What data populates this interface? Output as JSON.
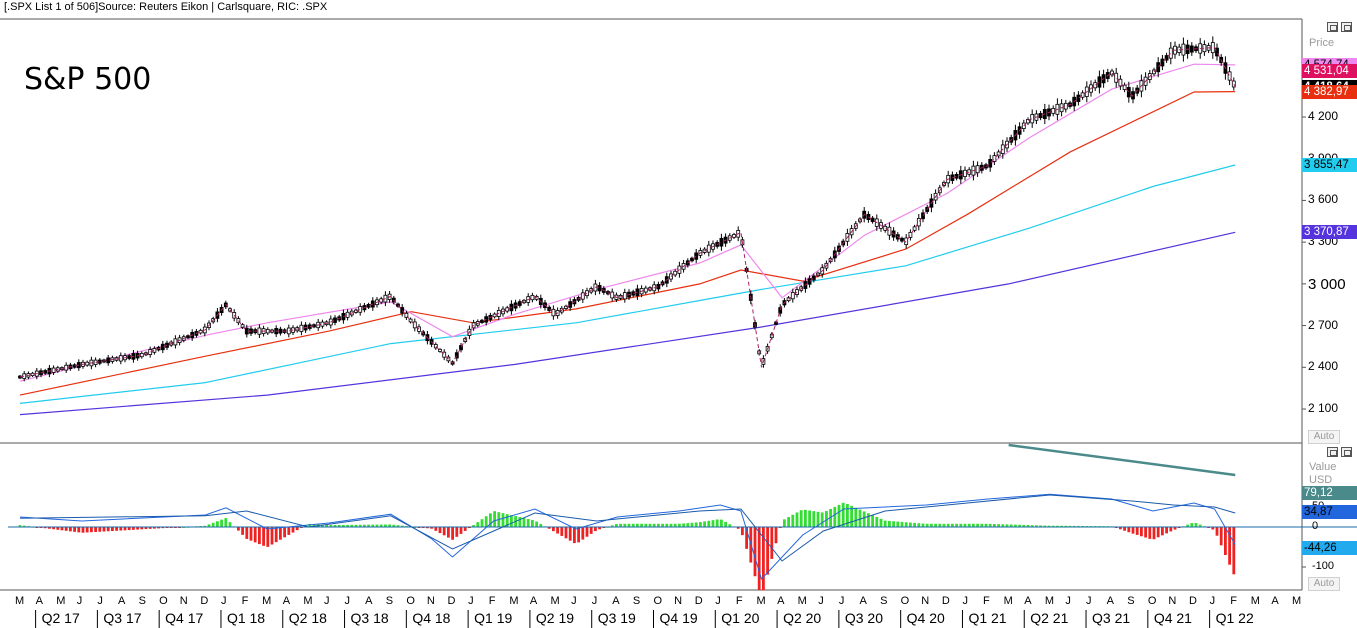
{
  "header": {
    "text": "[.SPX List 1 of 506]Source: Reuters Eikon | Carlsquare, RIC: .SPX"
  },
  "title": "S&P 500",
  "price_panel": {
    "label": "Price",
    "auto_label": "Auto",
    "ticks": [
      "4 200",
      "3 900",
      "3 600",
      "3 300",
      "3 000",
      "2 700",
      "2 400",
      "2 100"
    ],
    "tags": [
      {
        "value": "4 574,74",
        "color": "#ee88ee",
        "text_color": "#000000"
      },
      {
        "value": "4 531,04",
        "color": "#e01060",
        "text_color": "#ffffff"
      },
      {
        "value": "4 418,64",
        "color": "#000000",
        "text_color": "#ffffff"
      },
      {
        "value": "4 382,97",
        "color": "#e83010",
        "text_color": "#ffffff"
      },
      {
        "value": "3 855,47",
        "color": "#22ccee",
        "text_color": "#000000"
      },
      {
        "value": "3 370,87",
        "color": "#5533dd",
        "text_color": "#ffffff"
      }
    ]
  },
  "macd_panel": {
    "label": "Value",
    "unit": "USD",
    "auto_label": "Auto",
    "ticks": [
      "50",
      "0",
      "-50",
      "-100"
    ],
    "tags": [
      {
        "value": "79,12",
        "color": "#4a8a8a",
        "text_color": "#ffffff"
      },
      {
        "value": "34,87",
        "color": "#2266dd",
        "text_color": "#000000"
      },
      {
        "value": "-44,26",
        "color": "#22aaee",
        "text_color": "#000000"
      }
    ]
  },
  "x_axis": {
    "months": [
      "M",
      "A",
      "M",
      "J",
      "J",
      "A",
      "S",
      "O",
      "N",
      "D",
      "J",
      "F",
      "M",
      "A",
      "M",
      "J",
      "J",
      "A",
      "S",
      "O",
      "N",
      "D",
      "J",
      "F",
      "M",
      "A",
      "M",
      "J",
      "J",
      "A",
      "S",
      "O",
      "N",
      "D",
      "J",
      "F",
      "M",
      "A",
      "M",
      "J",
      "J",
      "A",
      "S",
      "O",
      "N",
      "D",
      "J",
      "F",
      "M",
      "A",
      "M",
      "J",
      "J",
      "A",
      "S",
      "O",
      "N",
      "D",
      "J",
      "F",
      "M",
      "A",
      "M"
    ],
    "quarters": [
      "Q2 17",
      "Q3 17",
      "Q4 17",
      "Q1 18",
      "Q2 18",
      "Q3 18",
      "Q4 18",
      "Q1 19",
      "Q2 19",
      "Q3 19",
      "Q4 19",
      "Q1 20",
      "Q2 20",
      "Q3 20",
      "Q4 20",
      "Q1 21",
      "Q2 21",
      "Q3 21",
      "Q4 21",
      "Q1 22"
    ]
  },
  "chart_data": {
    "type": "line",
    "title": "S&P 500",
    "x_range": [
      "2017-03",
      "2022-05"
    ],
    "ylim": [
      2000,
      4700
    ],
    "series": [
      {
        "name": "",
        "color": "#000000",
        "points": [
          [
            "2017-03",
            2330
          ],
          [
            "2017-06",
            2420
          ],
          [
            "2017-09",
            2490
          ],
          [
            "2017-12",
            2670
          ],
          [
            "2018-01",
            2850
          ],
          [
            "2018-02",
            2660
          ],
          [
            "2018-04",
            2660
          ],
          [
            "2018-06",
            2720
          ],
          [
            "2018-09",
            2910
          ],
          [
            "2018-10",
            2730
          ],
          [
            "2018-12",
            2430
          ],
          [
            "2019-01",
            2700
          ],
          [
            "2019-04",
            2910
          ],
          [
            "2019-05",
            2780
          ],
          [
            "2019-07",
            2980
          ],
          [
            "2019-08",
            2900
          ],
          [
            "2019-10",
            2980
          ],
          [
            "2019-12",
            3220
          ],
          [
            "2020-02",
            3370
          ],
          [
            "2020-03",
            2400
          ],
          [
            "2020-04",
            2850
          ],
          [
            "2020-06",
            3100
          ],
          [
            "2020-08",
            3500
          ],
          [
            "2020-10",
            3300
          ],
          [
            "2020-12",
            3750
          ],
          [
            "2021-02",
            3850
          ],
          [
            "2021-04",
            4180
          ],
          [
            "2021-06",
            4290
          ],
          [
            "2021-08",
            4520
          ],
          [
            "2021-09",
            4350
          ],
          [
            "2021-11",
            4680
          ],
          [
            "2022-01",
            4700
          ],
          [
            "2022-02",
            4418
          ]
        ]
      },
      {
        "name": "",
        "color": "#ee88ee",
        "points": [
          [
            "2017-03",
            2300
          ],
          [
            "2017-12",
            2630
          ],
          [
            "2018-03",
            2720
          ],
          [
            "2018-09",
            2870
          ],
          [
            "2018-12",
            2620
          ],
          [
            "2019-03",
            2780
          ],
          [
            "2019-07",
            2960
          ],
          [
            "2019-12",
            3150
          ],
          [
            "2020-02",
            3280
          ],
          [
            "2020-04",
            2900
          ],
          [
            "2020-08",
            3350
          ],
          [
            "2020-12",
            3650
          ],
          [
            "2021-04",
            4050
          ],
          [
            "2021-08",
            4400
          ],
          [
            "2021-12",
            4580
          ],
          [
            "2022-02",
            4575
          ]
        ]
      },
      {
        "name": "",
        "color": "#e83010",
        "points": [
          [
            "2017-03",
            2200
          ],
          [
            "2017-12",
            2480
          ],
          [
            "2018-06",
            2660
          ],
          [
            "2018-10",
            2800
          ],
          [
            "2019-01",
            2720
          ],
          [
            "2019-06",
            2820
          ],
          [
            "2019-12",
            3000
          ],
          [
            "2020-02",
            3100
          ],
          [
            "2020-05",
            3020
          ],
          [
            "2020-10",
            3250
          ],
          [
            "2021-01",
            3500
          ],
          [
            "2021-06",
            3950
          ],
          [
            "2021-12",
            4380
          ],
          [
            "2022-02",
            4383
          ]
        ]
      },
      {
        "name": "",
        "color": "#22ccee",
        "points": [
          [
            "2017-03",
            2140
          ],
          [
            "2017-12",
            2290
          ],
          [
            "2018-09",
            2570
          ],
          [
            "2019-06",
            2720
          ],
          [
            "2019-12",
            2880
          ],
          [
            "2020-03",
            2960
          ],
          [
            "2020-10",
            3130
          ],
          [
            "2021-04",
            3400
          ],
          [
            "2021-10",
            3700
          ],
          [
            "2022-02",
            3855
          ]
        ]
      },
      {
        "name": "",
        "color": "#5533dd",
        "points": [
          [
            "2017-03",
            2060
          ],
          [
            "2018-03",
            2200
          ],
          [
            "2019-03",
            2420
          ],
          [
            "2020-03",
            2690
          ],
          [
            "2021-03",
            3000
          ],
          [
            "2022-02",
            3371
          ]
        ]
      }
    ],
    "macd": {
      "ylim": [
        -120,
        110
      ],
      "series": [
        {
          "name": "",
          "color": "#2266dd",
          "points": [
            [
              "2017-03",
              25
            ],
            [
              "2017-06",
              15
            ],
            [
              "2017-12",
              30
            ],
            [
              "2018-01",
              48
            ],
            [
              "2018-03",
              -5
            ],
            [
              "2018-06",
              10
            ],
            [
              "2018-09",
              32
            ],
            [
              "2018-11",
              -30
            ],
            [
              "2018-12",
              -75
            ],
            [
              "2019-02",
              15
            ],
            [
              "2019-04",
              45
            ],
            [
              "2019-06",
              -5
            ],
            [
              "2019-08",
              25
            ],
            [
              "2019-11",
              40
            ],
            [
              "2020-01",
              55
            ],
            [
              "2020-02",
              40
            ],
            [
              "2020-03",
              -130
            ],
            [
              "2020-05",
              -20
            ],
            [
              "2020-07",
              45
            ],
            [
              "2020-09",
              50
            ],
            [
              "2020-11",
              55
            ],
            [
              "2021-02",
              70
            ],
            [
              "2021-05",
              82
            ],
            [
              "2021-08",
              70
            ],
            [
              "2021-10",
              40
            ],
            [
              "2021-12",
              60
            ],
            [
              "2022-01",
              45
            ],
            [
              "2022-02",
              -44
            ]
          ]
        },
        {
          "name": "",
          "color": "#1a5aaa",
          "points": [
            [
              "2017-03",
              22
            ],
            [
              "2017-12",
              28
            ],
            [
              "2018-02",
              40
            ],
            [
              "2018-05",
              0
            ],
            [
              "2018-09",
              28
            ],
            [
              "2018-12",
              -55
            ],
            [
              "2019-02",
              -10
            ],
            [
              "2019-04",
              35
            ],
            [
              "2019-07",
              15
            ],
            [
              "2019-12",
              40
            ],
            [
              "2020-02",
              45
            ],
            [
              "2020-04",
              -85
            ],
            [
              "2020-06",
              -10
            ],
            [
              "2020-09",
              40
            ],
            [
              "2021-01",
              60
            ],
            [
              "2021-05",
              80
            ],
            [
              "2021-09",
              65
            ],
            [
              "2021-11",
              55
            ],
            [
              "2022-01",
              50
            ],
            [
              "2022-02",
              35
            ]
          ]
        }
      ],
      "trendline_color": "#4a8a8a"
    }
  }
}
